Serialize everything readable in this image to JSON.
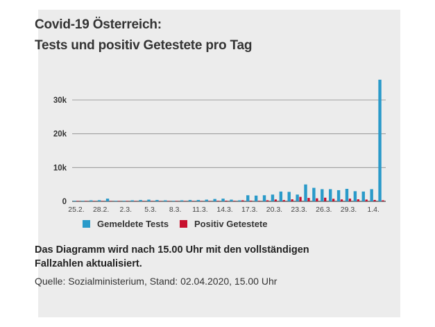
{
  "title_line1": "Covid-19 Österreich:",
  "title_line2": "Tests und positiv Getestete pro Tag",
  "note": "Das Diagramm wird nach 15.00 Uhr mit den vollständigen Fallzahlen aktualisiert.",
  "source": "Quelle: Sozialministerium, Stand: 02.04.2020, 15.00 Uhr",
  "colors": {
    "tests": "#2a9ac9",
    "positive": "#c8102e",
    "background": "#ececec",
    "grid": "#666666"
  },
  "chart_data": {
    "type": "bar",
    "title": "Covid-19 Österreich: Tests und positiv Getestete pro Tag",
    "ylim": [
      0,
      37000
    ],
    "yticks": [
      0,
      10000,
      20000,
      30000
    ],
    "ytick_labels": [
      "0",
      "10k",
      "20k",
      "30k"
    ],
    "xtick_labels": [
      "25.2.",
      "28.2.",
      "2.3.",
      "5.3.",
      "8.3.",
      "11.3.",
      "14.3.",
      "17.3.",
      "20.3.",
      "23.3.",
      "26.3.",
      "29.3.",
      "1.4."
    ],
    "categories": [
      "25.2.",
      "26.2.",
      "27.2.",
      "28.2.",
      "29.2.",
      "1.3.",
      "2.3.",
      "3.3.",
      "4.3.",
      "5.3.",
      "6.3.",
      "7.3.",
      "8.3.",
      "9.3.",
      "10.3.",
      "11.3.",
      "12.3.",
      "13.3.",
      "14.3.",
      "15.3.",
      "16.3.",
      "17.3.",
      "18.3.",
      "19.3.",
      "20.3.",
      "21.3.",
      "22.3.",
      "23.3.",
      "24.3.",
      "25.3.",
      "26.3.",
      "27.3.",
      "28.3.",
      "29.3.",
      "30.3.",
      "31.3.",
      "1.4.",
      "2.4."
    ],
    "series": [
      {
        "name": "Gemeldete Tests",
        "color": "#2a9ac9",
        "values": [
          100,
          150,
          300,
          350,
          800,
          150,
          100,
          300,
          400,
          500,
          400,
          300,
          100,
          300,
          400,
          400,
          500,
          700,
          800,
          500,
          300,
          1800,
          1700,
          1800,
          2000,
          2900,
          2800,
          2000,
          5000,
          4000,
          3600,
          3600,
          3300,
          3700,
          3000,
          2900,
          3600,
          36000
        ]
      },
      {
        "name": "Positiv Getestete",
        "color": "#c8102e",
        "values": [
          2,
          0,
          1,
          2,
          4,
          5,
          8,
          6,
          6,
          14,
          14,
          25,
          38,
          29,
          51,
          64,
          115,
          151,
          202,
          151,
          314,
          205,
          158,
          314,
          550,
          375,
          595,
          1321,
          1010,
          893,
          1075,
          750,
          564,
          805,
          605,
          522,
          418,
          310
        ]
      }
    ],
    "legend": {
      "position": "bottom-left",
      "items": [
        "Gemeldete Tests",
        "Positiv Getestete"
      ]
    },
    "grid": true
  }
}
